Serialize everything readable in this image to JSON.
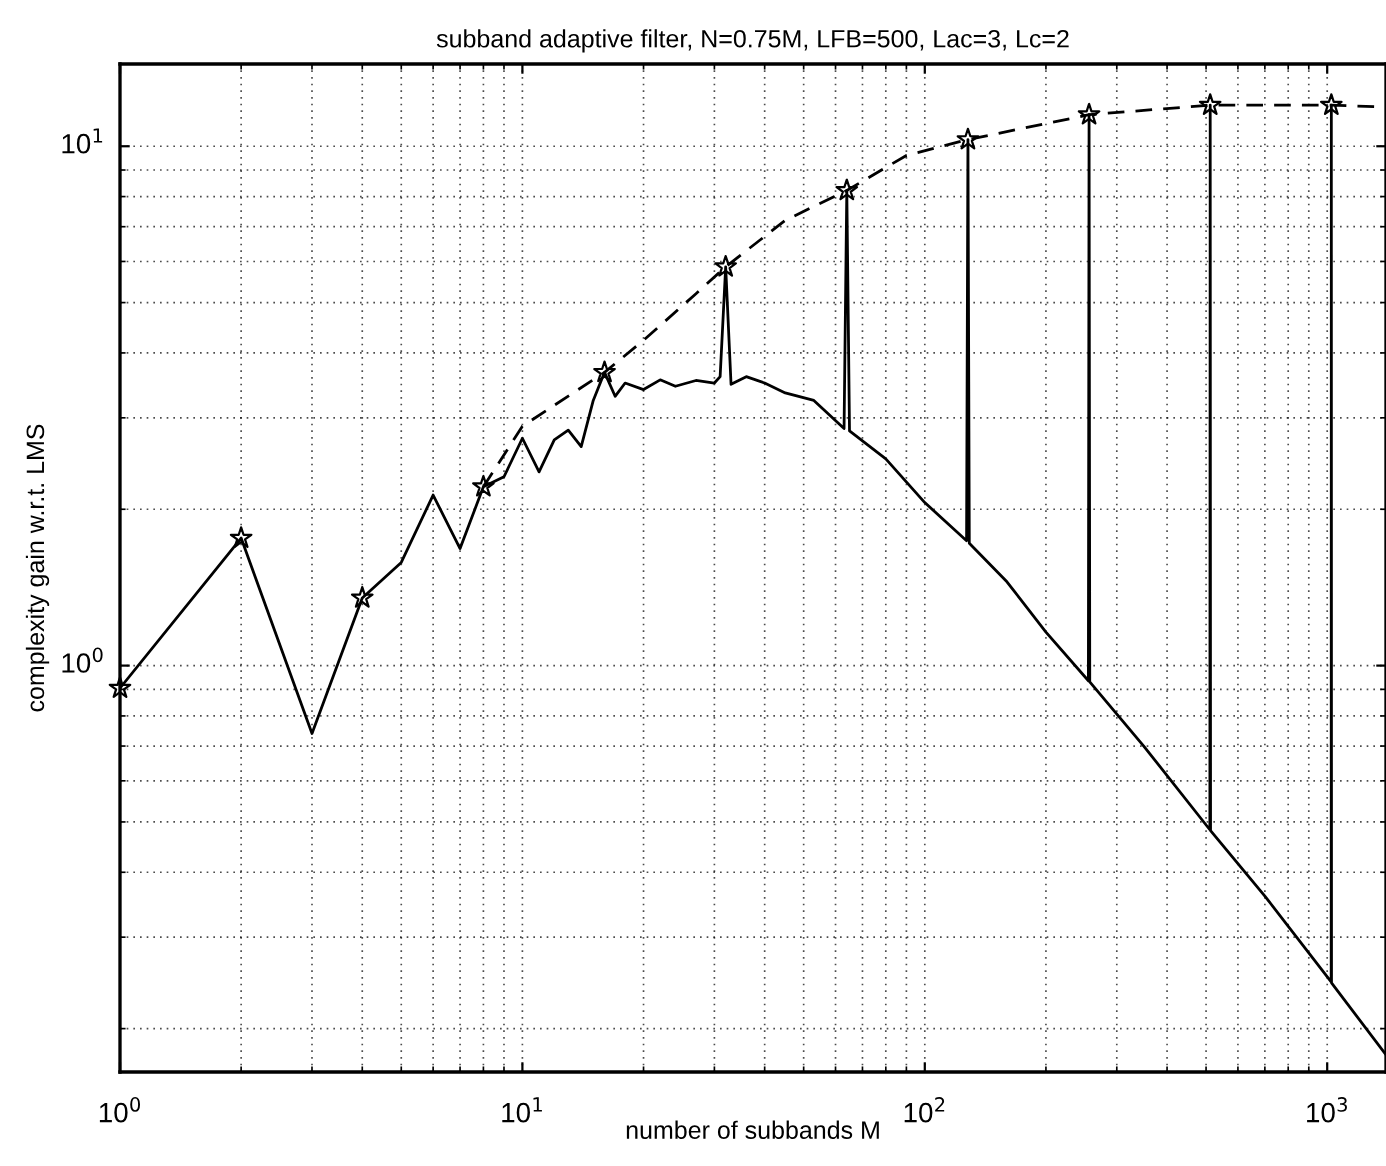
{
  "chart_data": {
    "type": "line",
    "title": "subband adaptive filter, N=0.75M, LFB=500, Lac=3, Lc=2",
    "xlabel": "number of subbands M",
    "ylabel": "complexity gain w.r.t. LMS",
    "log": "xy",
    "grid": true,
    "xlim": [
      1,
      1400
    ],
    "ylim": [
      0.165,
      14.4
    ],
    "xticks": [
      {
        "value": 1,
        "label": "10$^{0}$"
      },
      {
        "value": 10,
        "label": "10$^{1}$"
      },
      {
        "value": 100,
        "label": "10$^{2}$"
      },
      {
        "value": 1000,
        "label": "10$^{3}$"
      }
    ],
    "yticks": [
      {
        "value": 1,
        "label": "10$^{0}$"
      },
      {
        "value": 10,
        "label": "10$^{1}$"
      }
    ],
    "series": [
      {
        "color": "#000000",
        "line_style": "solid",
        "marker": "none",
        "x": [
          1,
          2,
          3,
          4,
          5,
          6,
          7,
          8,
          9,
          10,
          11,
          12,
          13,
          14,
          15,
          16,
          17,
          18,
          20,
          22,
          24,
          27,
          30,
          31,
          32,
          33,
          36,
          40,
          45,
          53,
          63,
          64,
          65,
          80,
          100,
          127,
          128,
          129,
          160,
          200,
          255,
          256,
          257,
          350,
          511,
          512,
          513,
          700,
          1023,
          1024,
          1025,
          1400
        ],
        "values": [
          0.905,
          1.76,
          0.74,
          1.35,
          1.58,
          2.13,
          1.68,
          2.21,
          2.31,
          2.74,
          2.36,
          2.72,
          2.84,
          2.64,
          3.24,
          3.67,
          3.3,
          3.5,
          3.4,
          3.55,
          3.45,
          3.54,
          3.5,
          3.6,
          5.86,
          3.48,
          3.6,
          3.5,
          3.35,
          3.24,
          2.86,
          8.22,
          2.83,
          2.5,
          2.06,
          1.74,
          10.3,
          1.72,
          1.45,
          1.16,
          0.935,
          11.5,
          0.93,
          0.7,
          0.483,
          12.0,
          0.481,
          0.36,
          0.246,
          12.0,
          0.245,
          0.178
        ]
      },
      {
        "color": "#000000",
        "line_style": "dashed",
        "marker": "none",
        "x": [
          8,
          10,
          16,
          20,
          27,
          32,
          45,
          64,
          90,
          128,
          256,
          512,
          1024,
          1400
        ],
        "values": [
          2.21,
          2.89,
          3.67,
          4.23,
          5.2,
          5.86,
          7.2,
          8.22,
          9.6,
          10.3,
          11.5,
          12.0,
          12.0,
          11.9
        ]
      },
      {
        "type": "scatter",
        "color": "#000000",
        "marker": "star",
        "x": [
          1,
          2,
          4,
          8,
          16,
          32,
          64,
          128,
          256,
          512,
          1024
        ],
        "values": [
          0.905,
          1.76,
          1.35,
          2.21,
          3.67,
          5.86,
          8.22,
          10.3,
          11.5,
          12.0,
          12.0
        ]
      }
    ]
  }
}
